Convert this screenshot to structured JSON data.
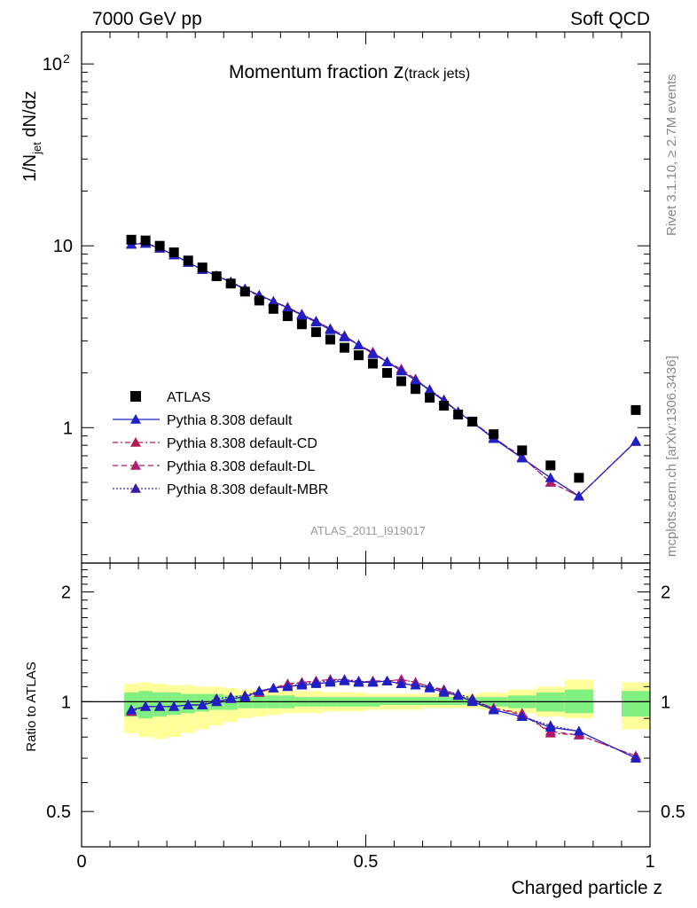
{
  "header": {
    "left": "7000 GeV pp",
    "right": "Soft QCD"
  },
  "side_labels": {
    "rivet": "Rivet 3.1.10, ≥ 2.7M events",
    "mcplots": "mcplots.cern.ch [arXiv:1306.3436]"
  },
  "colors": {
    "atlas": "#000000",
    "default": "#1f1fc8",
    "cd": "#b01a55",
    "dl": "#b01a6e",
    "mbr": "#3a1aa0",
    "band_inner": "#80f080",
    "band_outer": "#ffff99"
  },
  "chart_data": [
    {
      "type": "scatter",
      "title_main": "Momentum fraction ",
      "title_var": "z",
      "title_sub": "(track jets)",
      "ylabel_prefix": "1/N",
      "ylabel_sub": "jet",
      "ylabel_suffix": " dN/dz",
      "xlim": [
        0,
        1.0
      ],
      "ylim": [
        0.18,
        150
      ],
      "yscale": "log",
      "yticks": [
        {
          "value": 100,
          "label": "10",
          "exp": "2"
        },
        {
          "value": 10,
          "label": "10",
          "exp": ""
        },
        {
          "value": 1,
          "label": "1",
          "exp": ""
        }
      ],
      "watermark": "ATLAS_2011_I919017",
      "legend_position": "left-middle",
      "legend": [
        "ATLAS",
        "Pythia 8.308 default",
        "Pythia 8.308 default-CD",
        "Pythia 8.308 default-DL",
        "Pythia 8.308 default-MBR"
      ],
      "x": [
        0.0875,
        0.1125,
        0.1375,
        0.1625,
        0.1875,
        0.2125,
        0.2375,
        0.2625,
        0.2875,
        0.3125,
        0.3375,
        0.3625,
        0.3875,
        0.4125,
        0.4375,
        0.4625,
        0.4875,
        0.5125,
        0.5375,
        0.5625,
        0.5875,
        0.6125,
        0.6375,
        0.6625,
        0.6875,
        0.725,
        0.775,
        0.825,
        0.875,
        0.975
      ],
      "series": [
        {
          "name": "ATLAS",
          "style": "square",
          "values": [
            10.8,
            10.7,
            10.0,
            9.2,
            8.3,
            7.6,
            6.8,
            6.2,
            5.6,
            5.0,
            4.5,
            4.1,
            3.7,
            3.35,
            3.05,
            2.75,
            2.5,
            2.25,
            2.0,
            1.8,
            1.63,
            1.46,
            1.32,
            1.18,
            1.08,
            0.92,
            0.75,
            0.62,
            0.53,
            1.25
          ]
        },
        {
          "name": "Pythia 8.308 default",
          "style": "solid",
          "values": [
            10.2,
            10.3,
            9.7,
            8.9,
            8.1,
            7.4,
            6.85,
            6.3,
            5.8,
            5.35,
            4.95,
            4.55,
            4.15,
            3.8,
            3.45,
            3.15,
            2.85,
            2.55,
            2.3,
            2.05,
            1.82,
            1.6,
            1.4,
            1.22,
            1.07,
            0.87,
            0.68,
            0.53,
            0.42,
            0.84
          ]
        },
        {
          "name": "Pythia 8.308 default-CD",
          "style": "dashdot",
          "values": [
            10.2,
            10.4,
            9.7,
            8.9,
            8.1,
            7.4,
            6.85,
            6.3,
            5.75,
            5.3,
            4.95,
            4.6,
            4.2,
            3.85,
            3.5,
            3.2,
            2.85,
            2.6,
            2.3,
            2.1,
            1.85,
            1.6,
            1.42,
            1.22,
            1.08,
            0.88,
            0.69,
            0.5,
            0.42,
            0.84
          ]
        },
        {
          "name": "Pythia 8.308 default-DL",
          "style": "dashed",
          "values": [
            10.2,
            10.4,
            9.7,
            8.9,
            8.1,
            7.4,
            6.85,
            6.3,
            5.75,
            5.3,
            4.95,
            4.55,
            4.2,
            3.85,
            3.5,
            3.2,
            2.85,
            2.6,
            2.3,
            2.1,
            1.85,
            1.6,
            1.42,
            1.22,
            1.08,
            0.88,
            0.69,
            0.5,
            0.42,
            0.84
          ]
        },
        {
          "name": "Pythia 8.308 default-MBR",
          "style": "dotted",
          "values": [
            10.2,
            10.3,
            9.7,
            8.9,
            8.1,
            7.4,
            6.85,
            6.35,
            5.8,
            5.35,
            4.95,
            4.55,
            4.2,
            3.85,
            3.5,
            3.2,
            2.85,
            2.55,
            2.3,
            2.05,
            1.82,
            1.62,
            1.42,
            1.22,
            1.07,
            0.88,
            0.68,
            0.53,
            0.42,
            0.84
          ]
        }
      ]
    },
    {
      "type": "scatter",
      "ylabel": "Ratio to ATLAS",
      "xlabel": "Charged particle z",
      "xlim": [
        0,
        1.0
      ],
      "ylim": [
        0.4,
        2.4
      ],
      "yscale": "log",
      "yticks": [
        {
          "value": 2,
          "label": "2"
        },
        {
          "value": 1,
          "label": "1"
        },
        {
          "value": 0.5,
          "label": "0.5"
        }
      ],
      "xticks": [
        {
          "value": 0,
          "label": "0"
        },
        {
          "value": 0.5,
          "label": "0.5"
        },
        {
          "value": 1,
          "label": "1"
        }
      ],
      "bands": {
        "x_edges": [
          0.075,
          0.1,
          0.125,
          0.15,
          0.175,
          0.2,
          0.225,
          0.25,
          0.275,
          0.3,
          0.325,
          0.35,
          0.375,
          0.4,
          0.425,
          0.45,
          0.475,
          0.5,
          0.525,
          0.55,
          0.575,
          0.6,
          0.625,
          0.65,
          0.675,
          0.7,
          0.75,
          0.8,
          0.85,
          0.9,
          0.95,
          1.0
        ],
        "missing_bins": [
          29
        ],
        "outer_lo": [
          0.82,
          0.8,
          0.79,
          0.8,
          0.82,
          0.84,
          0.86,
          0.88,
          0.9,
          0.91,
          0.92,
          0.93,
          0.93,
          0.93,
          0.94,
          0.94,
          0.94,
          0.95,
          0.95,
          0.95,
          0.95,
          0.96,
          0.96,
          0.96,
          0.96,
          0.95,
          0.93,
          0.91,
          0.9,
          0,
          0.84
        ],
        "outer_hi": [
          1.12,
          1.13,
          1.12,
          1.11,
          1.11,
          1.1,
          1.1,
          1.09,
          1.08,
          1.08,
          1.07,
          1.07,
          1.07,
          1.07,
          1.06,
          1.06,
          1.06,
          1.05,
          1.05,
          1.05,
          1.05,
          1.05,
          1.05,
          1.05,
          1.05,
          1.06,
          1.08,
          1.1,
          1.15,
          0,
          1.13
        ],
        "inner_lo": [
          0.91,
          0.9,
          0.91,
          0.92,
          0.93,
          0.94,
          0.95,
          0.95,
          0.96,
          0.96,
          0.96,
          0.96,
          0.97,
          0.97,
          0.97,
          0.97,
          0.97,
          0.97,
          0.98,
          0.98,
          0.98,
          0.98,
          0.98,
          0.98,
          0.98,
          0.97,
          0.96,
          0.94,
          0.93,
          0,
          0.91
        ],
        "inner_hi": [
          1.06,
          1.07,
          1.06,
          1.06,
          1.05,
          1.05,
          1.05,
          1.04,
          1.04,
          1.04,
          1.04,
          1.04,
          1.03,
          1.03,
          1.03,
          1.03,
          1.03,
          1.03,
          1.03,
          1.03,
          1.03,
          1.03,
          1.03,
          1.03,
          1.03,
          1.03,
          1.04,
          1.06,
          1.08,
          0,
          1.07
        ]
      },
      "x": [
        0.0875,
        0.1125,
        0.1375,
        0.1625,
        0.1875,
        0.2125,
        0.2375,
        0.2625,
        0.2875,
        0.3125,
        0.3375,
        0.3625,
        0.3875,
        0.4125,
        0.4375,
        0.4625,
        0.4875,
        0.5125,
        0.5375,
        0.5625,
        0.5875,
        0.6125,
        0.6375,
        0.6625,
        0.6875,
        0.725,
        0.775,
        0.825,
        0.875,
        0.975
      ],
      "series": [
        {
          "name": "Pythia 8.308 default",
          "style": "solid",
          "values": [
            0.95,
            0.97,
            0.97,
            0.97,
            0.98,
            0.98,
            1.0,
            1.02,
            1.03,
            1.07,
            1.09,
            1.1,
            1.11,
            1.12,
            1.13,
            1.14,
            1.13,
            1.13,
            1.14,
            1.12,
            1.11,
            1.09,
            1.06,
            1.04,
            1.0,
            0.95,
            0.91,
            0.85,
            0.83,
            0.7
          ]
        },
        {
          "name": "Pythia 8.308 default-CD",
          "style": "dashdot",
          "values": [
            0.94,
            0.97,
            0.97,
            0.97,
            0.98,
            0.98,
            1.0,
            1.02,
            1.03,
            1.06,
            1.09,
            1.12,
            1.13,
            1.14,
            1.15,
            1.15,
            1.13,
            1.14,
            1.14,
            1.15,
            1.13,
            1.1,
            1.08,
            1.04,
            1.01,
            0.96,
            0.93,
            0.82,
            0.81,
            0.71
          ]
        },
        {
          "name": "Pythia 8.308 default-DL",
          "style": "dashed",
          "values": [
            0.94,
            0.97,
            0.97,
            0.97,
            0.98,
            0.98,
            1.0,
            1.02,
            1.03,
            1.06,
            1.09,
            1.11,
            1.13,
            1.14,
            1.15,
            1.15,
            1.13,
            1.14,
            1.14,
            1.15,
            1.13,
            1.1,
            1.07,
            1.04,
            1.0,
            0.96,
            0.92,
            0.83,
            0.81,
            0.71
          ]
        },
        {
          "name": "Pythia 8.308 default-MBR",
          "style": "dotted",
          "values": [
            0.95,
            0.97,
            0.97,
            0.97,
            0.98,
            0.98,
            1.02,
            1.03,
            1.04,
            1.07,
            1.09,
            1.1,
            1.12,
            1.13,
            1.14,
            1.15,
            1.14,
            1.13,
            1.14,
            1.12,
            1.11,
            1.1,
            1.07,
            1.05,
            1.02,
            0.95,
            0.91,
            0.86,
            0.83,
            0.7
          ]
        }
      ]
    }
  ]
}
